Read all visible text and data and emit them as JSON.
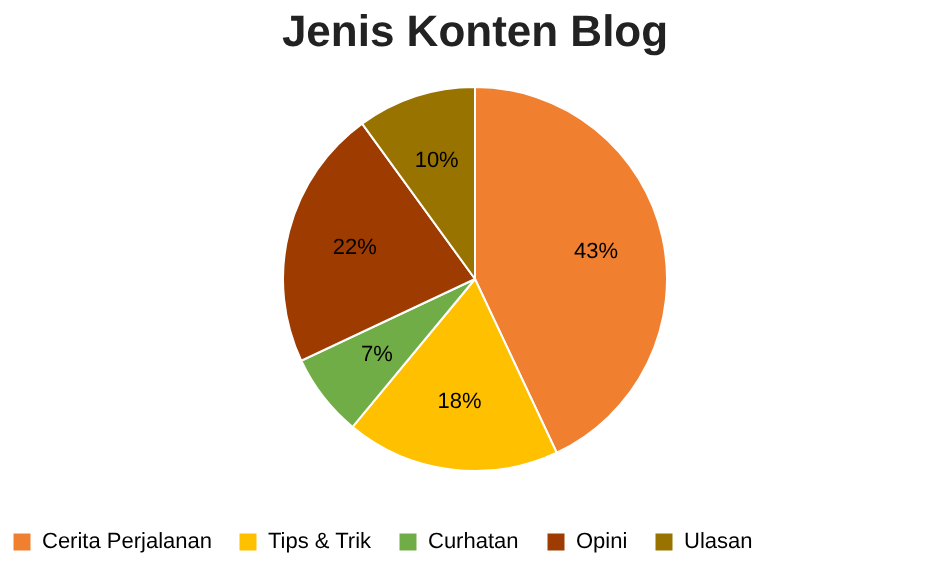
{
  "chart_data": {
    "type": "pie",
    "title": "Jenis Konten Blog",
    "categories": [
      "Cerita Perjalanan",
      "Tips & Trik",
      "Curhatan",
      "Opini",
      "Ulasan"
    ],
    "values": [
      43,
      18,
      7,
      22,
      10
    ],
    "colors": [
      "#f07f30",
      "#ffc000",
      "#70ad47",
      "#9e3b00",
      "#997300"
    ],
    "value_labels": [
      "43%",
      "18%",
      "7%",
      "22%",
      "10%"
    ],
    "legend": "bottom"
  }
}
